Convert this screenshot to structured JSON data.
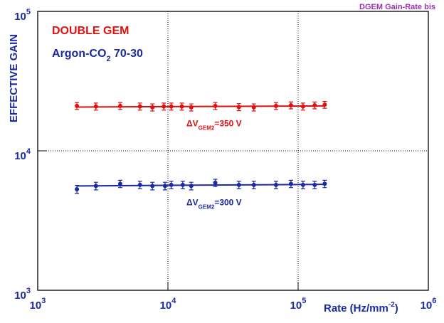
{
  "chart_data": {
    "type": "scatter",
    "title": "DGEM Gain-Rate bis",
    "annotations": [
      {
        "parts": [
          "DOUBLE GEM"
        ],
        "color": "#e01010"
      },
      {
        "parts": [
          "Argon-CO",
          "2",
          " 70-30"
        ],
        "color": "#1a2aa0"
      }
    ],
    "y_label": "EFFECTIVE GAIN",
    "x_label": {
      "parts": [
        "Rate (Hz/mm",
        "-2",
        ")"
      ]
    },
    "log_x": true,
    "log_y": true,
    "grid": true,
    "xlim": [
      1000,
      1000000
    ],
    "ylim": [
      1000,
      100000
    ],
    "xticks": [
      {
        "value": 1000,
        "label": "10",
        "power": "3"
      },
      {
        "value": 10000,
        "label": "10",
        "power": "4"
      },
      {
        "value": 100000,
        "label": "10",
        "power": "5"
      },
      {
        "value": 1000000,
        "label": "10",
        "power": "6"
      }
    ],
    "yticks": [
      {
        "value": 1000,
        "label": "10",
        "power": "3"
      },
      {
        "value": 10000,
        "label": "10",
        "power": "4"
      },
      {
        "value": 100000,
        "label": "10",
        "power": "5"
      }
    ],
    "series": [
      {
        "name_parts": [
          "ΔV",
          "GEM2",
          "=350 V"
        ],
        "color": "#e01010",
        "x": [
          2000,
          2800,
          4300,
          6100,
          7600,
          9300,
          10600,
          12800,
          15100,
          23100,
          35100,
          45700,
          67600,
          88100,
          109000,
          134000,
          160000
        ],
        "values": [
          21000,
          20800,
          21000,
          20800,
          20500,
          20800,
          20800,
          20800,
          20500,
          21000,
          20600,
          20500,
          21000,
          21200,
          20800,
          21200,
          21400
        ],
        "errors": [
          1200,
          1200,
          1200,
          1200,
          1200,
          1200,
          1200,
          1200,
          1200,
          1200,
          1200,
          1200,
          1200,
          1200,
          1200,
          1200,
          1200
        ],
        "fit_x": [
          2000,
          160000
        ],
        "fit_values": [
          20600,
          21000
        ]
      },
      {
        "name_parts": [
          "ΔV",
          "GEM2",
          "=300 V"
        ],
        "color": "#1a2aa0",
        "x": [
          2000,
          2800,
          4300,
          6100,
          7600,
          9500,
          10600,
          13000,
          15100,
          23100,
          35100,
          45700,
          67600,
          88100,
          109000,
          134000,
          160000
        ],
        "values": [
          5300,
          5600,
          5800,
          5700,
          5600,
          5600,
          5700,
          5700,
          5600,
          5900,
          5700,
          5700,
          5700,
          5800,
          5700,
          5700,
          5800
        ],
        "errors": [
          350,
          350,
          350,
          350,
          350,
          350,
          350,
          350,
          350,
          350,
          350,
          350,
          350,
          350,
          350,
          350,
          350
        ],
        "fit_x": [
          2000,
          160000
        ],
        "fit_values": [
          5600,
          5750
        ]
      }
    ]
  }
}
